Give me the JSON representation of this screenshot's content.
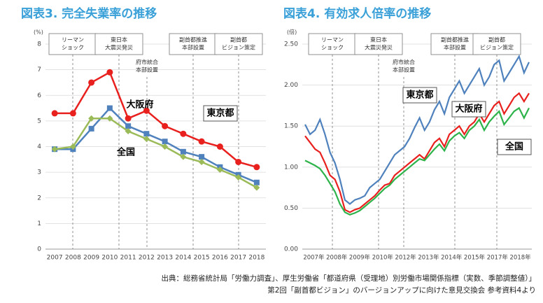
{
  "chart_data": [
    {
      "type": "line",
      "title": "図表3. 完全失業率の推移",
      "y_unit": "(%)",
      "categories": [
        "2007",
        "2008",
        "2009",
        "2010",
        "2011",
        "2012",
        "2013",
        "2014",
        "2015",
        "2016",
        "2017",
        "2018"
      ],
      "series": [
        {
          "name": "大阪府",
          "color": "#e8201e",
          "values": [
            5.3,
            5.3,
            6.5,
            6.9,
            5.1,
            5.4,
            4.8,
            4.5,
            4.2,
            4.0,
            3.4,
            3.2
          ]
        },
        {
          "name": "東京都",
          "color": "#4f81bd",
          "values": [
            3.9,
            3.9,
            4.7,
            5.5,
            4.8,
            4.5,
            4.2,
            3.8,
            3.6,
            3.2,
            2.9,
            2.6
          ]
        },
        {
          "name": "全国",
          "color": "#9bbb59",
          "values": [
            3.9,
            4.0,
            5.1,
            5.1,
            4.6,
            4.3,
            4.0,
            3.6,
            3.4,
            3.1,
            2.8,
            2.4
          ]
        }
      ],
      "ylim": [
        0,
        8
      ],
      "yticks": [
        0,
        1,
        2,
        3,
        4,
        5,
        6,
        7,
        8
      ],
      "annotations": [
        [
          "リーマン",
          "ショック"
        ],
        [
          "東日本",
          "大震災発災"
        ],
        [
          "府市統合",
          "本部設置"
        ],
        [
          "副首都推進",
          "本部設置"
        ],
        [
          "副首都",
          "ビジョン策定"
        ]
      ]
    },
    {
      "type": "line",
      "title": "図表4. 有効求人倍率の推移",
      "y_unit": "(倍)",
      "x_labels": [
        "2007年",
        "2008年",
        "2009年",
        "2010年",
        "2012年",
        "2013年",
        "2014年",
        "2015年",
        "2017年",
        "2018年"
      ],
      "series": [
        {
          "name": "東京都",
          "color": "#4f81bd",
          "values": [
            1.52,
            1.4,
            1.45,
            1.58,
            1.4,
            1.18,
            1.05,
            0.85,
            0.6,
            0.55,
            0.6,
            0.62,
            0.65,
            0.75,
            0.8,
            0.85,
            0.95,
            1.05,
            1.15,
            1.2,
            1.25,
            1.35,
            1.48,
            1.6,
            1.45,
            1.55,
            1.7,
            1.8,
            1.65,
            1.85,
            1.95,
            2.05,
            1.9,
            2.0,
            2.1,
            2.2,
            2.0,
            2.1,
            2.25,
            2.3,
            2.05,
            2.15,
            2.25,
            2.35,
            2.15,
            2.28
          ]
        },
        {
          "name": "大阪府",
          "color": "#e8201e",
          "values": [
            1.38,
            1.3,
            1.22,
            1.18,
            1.05,
            0.9,
            0.85,
            0.7,
            0.48,
            0.45,
            0.48,
            0.5,
            0.55,
            0.6,
            0.65,
            0.72,
            0.78,
            0.8,
            0.9,
            0.95,
            1.0,
            1.05,
            1.1,
            1.15,
            1.1,
            1.2,
            1.3,
            1.35,
            1.25,
            1.4,
            1.45,
            1.5,
            1.4,
            1.5,
            1.55,
            1.65,
            1.55,
            1.65,
            1.75,
            1.8,
            1.65,
            1.75,
            1.85,
            1.9,
            1.8,
            1.9
          ]
        },
        {
          "name": "全国",
          "color": "#2db34a",
          "values": [
            1.08,
            1.05,
            1.02,
            0.98,
            0.9,
            0.8,
            0.7,
            0.55,
            0.45,
            0.42,
            0.44,
            0.47,
            0.52,
            0.57,
            0.62,
            0.68,
            0.74,
            0.78,
            0.85,
            0.9,
            0.95,
            1.0,
            1.05,
            1.1,
            1.08,
            1.15,
            1.22,
            1.28,
            1.2,
            1.32,
            1.38,
            1.42,
            1.35,
            1.45,
            1.5,
            1.58,
            1.45,
            1.55,
            1.62,
            1.68,
            1.52,
            1.6,
            1.68,
            1.72,
            1.6,
            1.72
          ]
        }
      ],
      "ylim": [
        0,
        2.5
      ],
      "yticks": [
        {
          "value": 0,
          "label": "0.00"
        },
        {
          "value": 0.5,
          "label": "0.50"
        },
        {
          "value": 1,
          "label": "1.00"
        },
        {
          "value": 1.5,
          "label": "1.50"
        },
        {
          "value": 2,
          "label": "2.00"
        },
        {
          "value": 2.5,
          "label": "2.50"
        }
      ],
      "annotations": [
        [
          "リーマン",
          "ショック"
        ],
        [
          "東日本",
          "大震災発災"
        ],
        [
          "府市統合",
          "本部設置"
        ],
        [
          "副首都推進",
          "本部設置"
        ],
        [
          "副首都",
          "ビジョン策定"
        ]
      ]
    }
  ],
  "footnotes": [
    "出典：総務省統計局「労働力調査」、厚生労働省「都道府県（受理地）別労働市場関係指標（実数、季節調整値）」",
    "第2回「副首都ビジョン」のバージョンアップに向けた意見交換会 参考資料4より"
  ]
}
